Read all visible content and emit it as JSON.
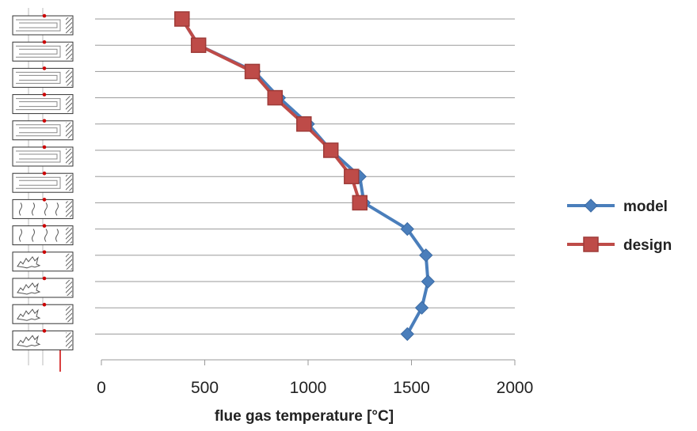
{
  "chart_data": {
    "type": "line",
    "xlabel": "flue gas temperature [°C]",
    "xlim": [
      0,
      2000
    ],
    "xticks": [
      0,
      500,
      1000,
      1500,
      2000
    ],
    "ylim": [
      0,
      13
    ],
    "grid": "horizontal",
    "legend_position": "right",
    "series": [
      {
        "name": "model",
        "color": "#4a7ebb",
        "marker": "diamond",
        "points": [
          [
            390,
            13
          ],
          [
            470,
            12
          ],
          [
            740,
            11
          ],
          [
            860,
            10
          ],
          [
            1000,
            9
          ],
          [
            1110,
            8
          ],
          [
            1250,
            7
          ],
          [
            1270,
            6
          ],
          [
            1480,
            5
          ],
          [
            1570,
            4
          ],
          [
            1580,
            3
          ],
          [
            1550,
            2
          ],
          [
            1480,
            1
          ]
        ]
      },
      {
        "name": "design",
        "color": "#be4b48",
        "marker": "square",
        "points": [
          [
            390,
            13
          ],
          [
            470,
            12
          ],
          [
            730,
            11
          ],
          [
            840,
            10
          ],
          [
            980,
            9
          ],
          [
            1110,
            8
          ],
          [
            1210,
            7
          ],
          [
            1250,
            6
          ]
        ]
      }
    ]
  },
  "schematic": {
    "description_icon": "boiler-schematic-icon"
  }
}
